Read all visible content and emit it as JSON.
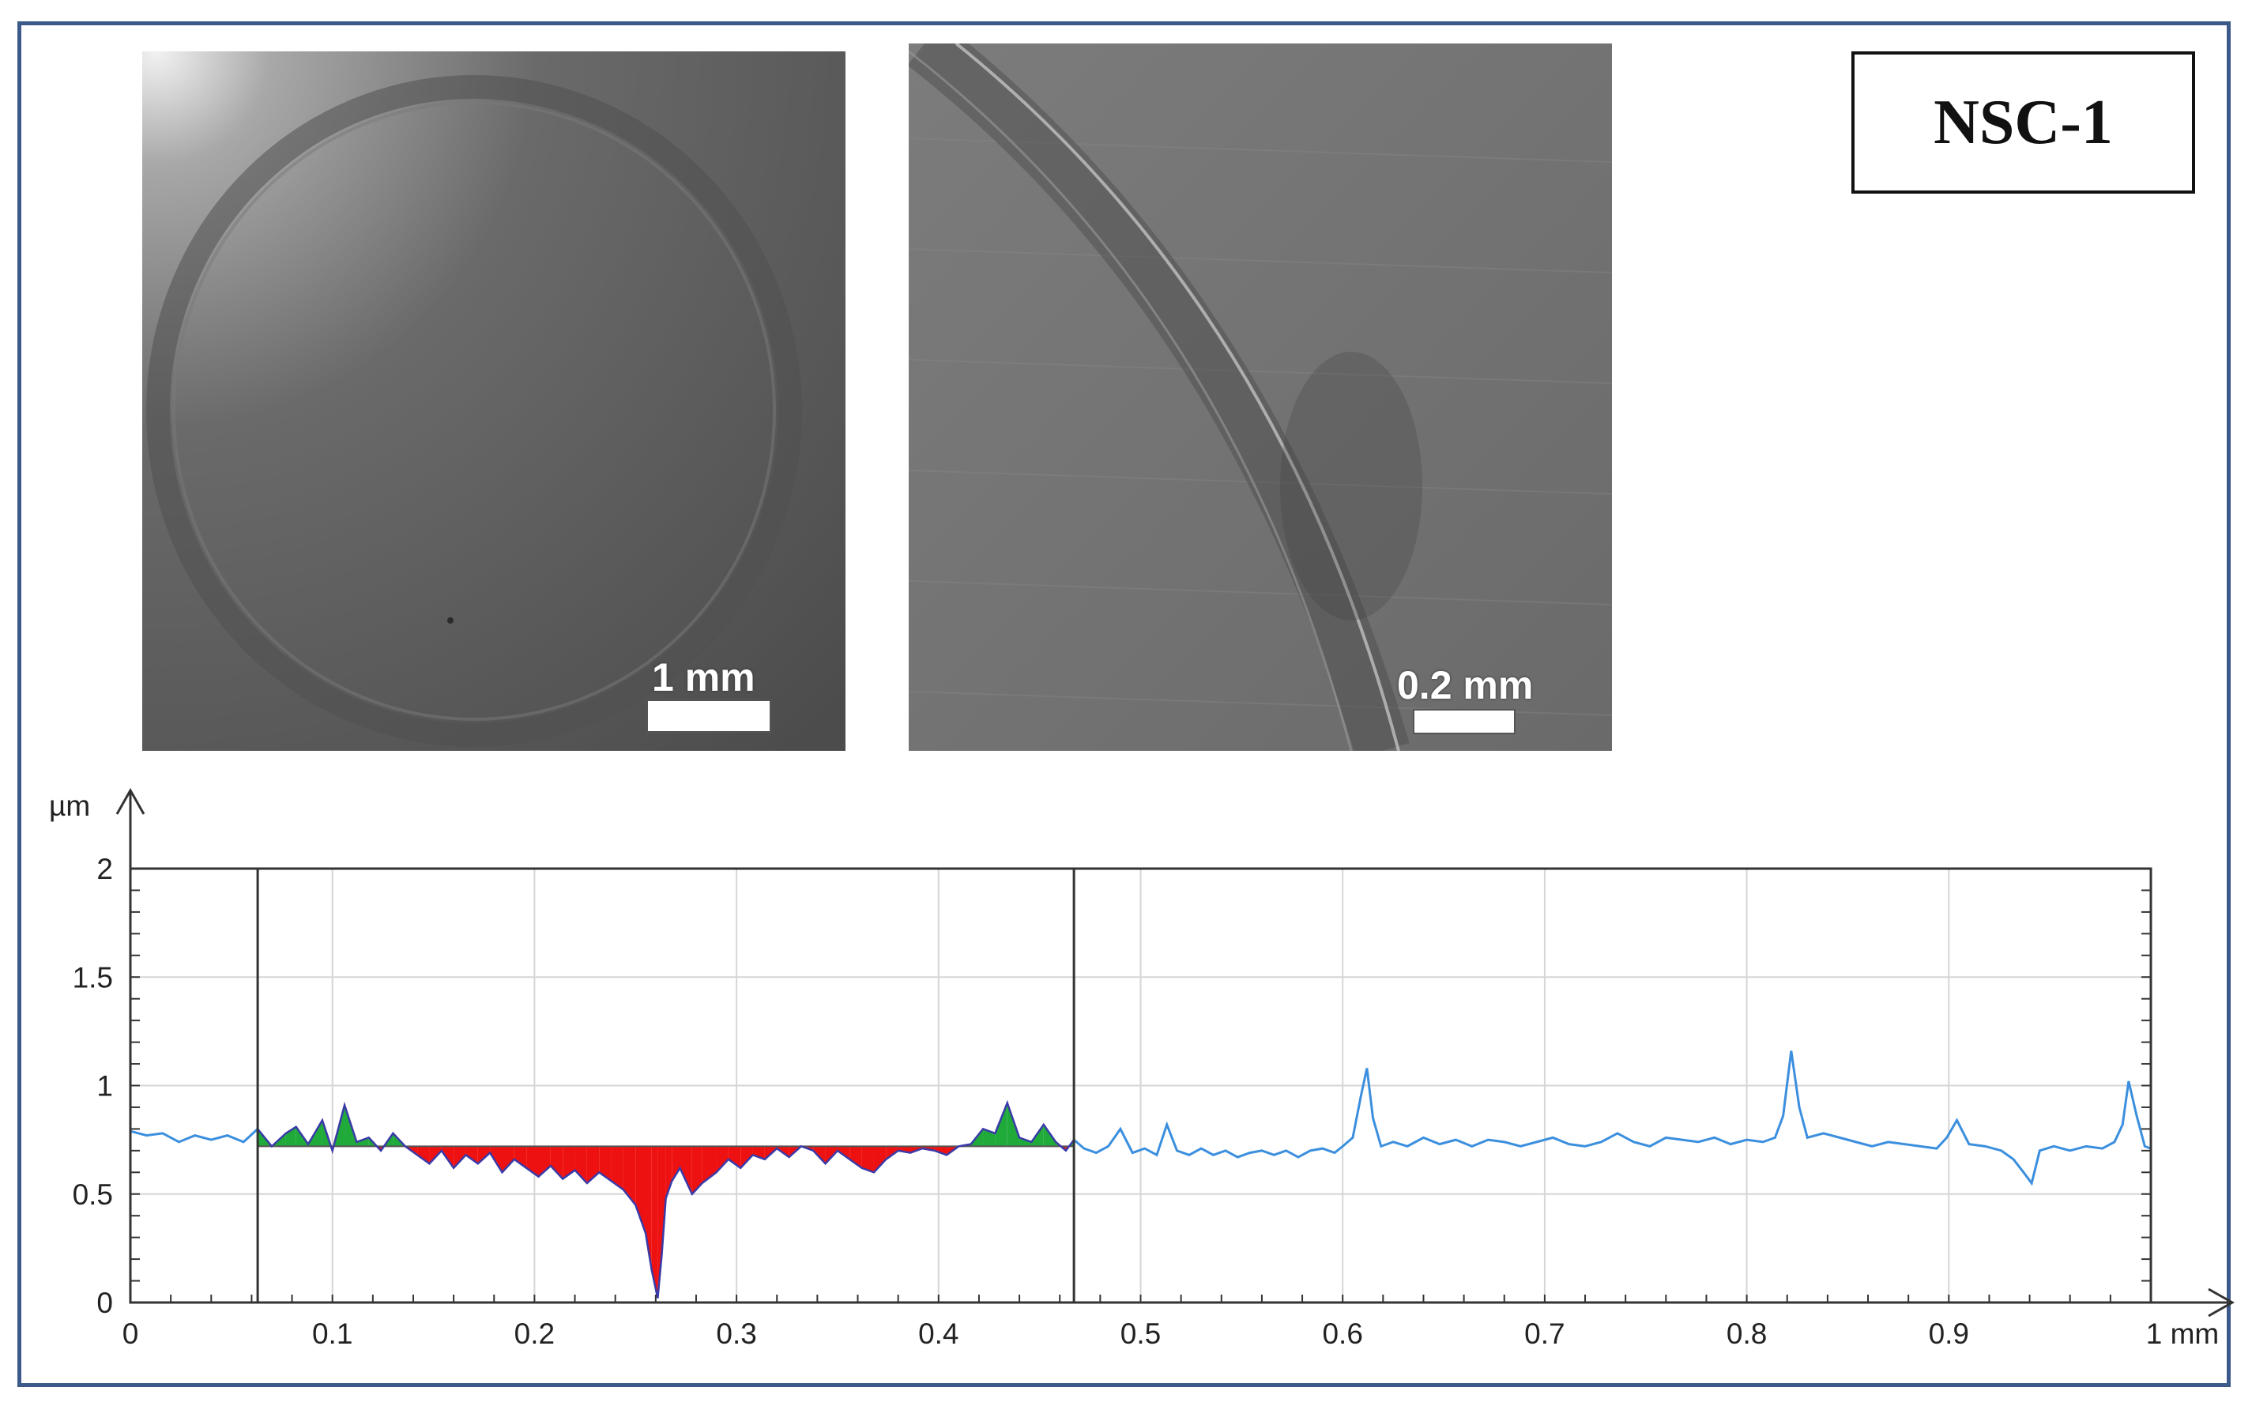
{
  "label": "NSC-1",
  "images": [
    {
      "scale_label": "1 mm"
    },
    {
      "scale_label": "0.2 mm"
    }
  ],
  "chart_data": {
    "type": "line",
    "y_unit": "µm",
    "x_unit": "mm",
    "xlim": [
      0,
      1
    ],
    "ylim": [
      0,
      2
    ],
    "x_ticks": [
      "0",
      "0.1",
      "0.2",
      "0.3",
      "0.4",
      "0.5",
      "0.6",
      "0.7",
      "0.8",
      "0.9",
      "1 mm"
    ],
    "y_ticks": [
      "0",
      "0.5",
      "1",
      "1.5",
      "2"
    ],
    "grid": true,
    "cursor_x": [
      0.063,
      0.467
    ],
    "reference_level": 0.72,
    "colors": {
      "line": "#3b8fde",
      "above_fill": "#1faa3a",
      "below_fill": "#ee1111",
      "profile_in_range": "#3a3aa8"
    },
    "series": [
      {
        "x": [
          0,
          0.008,
          0.016,
          0.024,
          0.032,
          0.04,
          0.048,
          0.056,
          0.063,
          0.07,
          0.077,
          0.082,
          0.088,
          0.095,
          0.1,
          0.106,
          0.112,
          0.118,
          0.124,
          0.13,
          0.136,
          0.142,
          0.148,
          0.154,
          0.16,
          0.166,
          0.172,
          0.178,
          0.184,
          0.19,
          0.196,
          0.202,
          0.208,
          0.214,
          0.22,
          0.226,
          0.232,
          0.238,
          0.244,
          0.25,
          0.255,
          0.258,
          0.261,
          0.263,
          0.265,
          0.268,
          0.272,
          0.278,
          0.283,
          0.29,
          0.296,
          0.302,
          0.308,
          0.314,
          0.32,
          0.326,
          0.332,
          0.338,
          0.344,
          0.35,
          0.356,
          0.362,
          0.368,
          0.374,
          0.38,
          0.386,
          0.392,
          0.398,
          0.404,
          0.41,
          0.416,
          0.422,
          0.428,
          0.434,
          0.44,
          0.446,
          0.452,
          0.458,
          0.463,
          0.467,
          0.472,
          0.478,
          0.484,
          0.49,
          0.496,
          0.502,
          0.508,
          0.513,
          0.518,
          0.524,
          0.53,
          0.536,
          0.542,
          0.548,
          0.554,
          0.56,
          0.566,
          0.572,
          0.578,
          0.584,
          0.59,
          0.596,
          0.6,
          0.605,
          0.609,
          0.612,
          0.615,
          0.619,
          0.625,
          0.632,
          0.64,
          0.648,
          0.656,
          0.664,
          0.672,
          0.68,
          0.688,
          0.696,
          0.704,
          0.712,
          0.72,
          0.728,
          0.736,
          0.744,
          0.752,
          0.76,
          0.768,
          0.776,
          0.784,
          0.792,
          0.8,
          0.808,
          0.814,
          0.818,
          0.822,
          0.826,
          0.83,
          0.838,
          0.846,
          0.854,
          0.862,
          0.87,
          0.878,
          0.886,
          0.894,
          0.899,
          0.904,
          0.91,
          0.918,
          0.926,
          0.932,
          0.937,
          0.941,
          0.945,
          0.952,
          0.96,
          0.968,
          0.976,
          0.982,
          0.986,
          0.989,
          0.993,
          0.997,
          1.0
        ],
        "y": [
          0.79,
          0.77,
          0.78,
          0.74,
          0.77,
          0.75,
          0.77,
          0.74,
          0.8,
          0.72,
          0.78,
          0.81,
          0.73,
          0.84,
          0.7,
          0.91,
          0.74,
          0.76,
          0.7,
          0.78,
          0.72,
          0.68,
          0.64,
          0.7,
          0.62,
          0.68,
          0.64,
          0.69,
          0.6,
          0.66,
          0.62,
          0.58,
          0.63,
          0.57,
          0.61,
          0.55,
          0.6,
          0.56,
          0.52,
          0.45,
          0.32,
          0.15,
          0.02,
          0.22,
          0.48,
          0.56,
          0.62,
          0.5,
          0.55,
          0.6,
          0.66,
          0.62,
          0.68,
          0.66,
          0.71,
          0.67,
          0.72,
          0.7,
          0.64,
          0.7,
          0.66,
          0.62,
          0.6,
          0.66,
          0.7,
          0.69,
          0.71,
          0.7,
          0.68,
          0.72,
          0.73,
          0.8,
          0.78,
          0.92,
          0.76,
          0.74,
          0.82,
          0.74,
          0.7,
          0.75,
          0.71,
          0.69,
          0.72,
          0.8,
          0.69,
          0.71,
          0.68,
          0.82,
          0.7,
          0.68,
          0.71,
          0.68,
          0.7,
          0.67,
          0.69,
          0.7,
          0.68,
          0.7,
          0.67,
          0.7,
          0.71,
          0.69,
          0.72,
          0.76,
          0.95,
          1.08,
          0.85,
          0.72,
          0.74,
          0.72,
          0.76,
          0.73,
          0.75,
          0.72,
          0.75,
          0.74,
          0.72,
          0.74,
          0.76,
          0.73,
          0.72,
          0.74,
          0.78,
          0.74,
          0.72,
          0.76,
          0.75,
          0.74,
          0.76,
          0.73,
          0.75,
          0.74,
          0.76,
          0.86,
          1.16,
          0.9,
          0.76,
          0.78,
          0.76,
          0.74,
          0.72,
          0.74,
          0.73,
          0.72,
          0.71,
          0.76,
          0.84,
          0.73,
          0.72,
          0.7,
          0.66,
          0.6,
          0.55,
          0.7,
          0.72,
          0.7,
          0.72,
          0.71,
          0.74,
          0.82,
          1.02,
          0.86,
          0.72,
          0.71
        ]
      }
    ]
  }
}
